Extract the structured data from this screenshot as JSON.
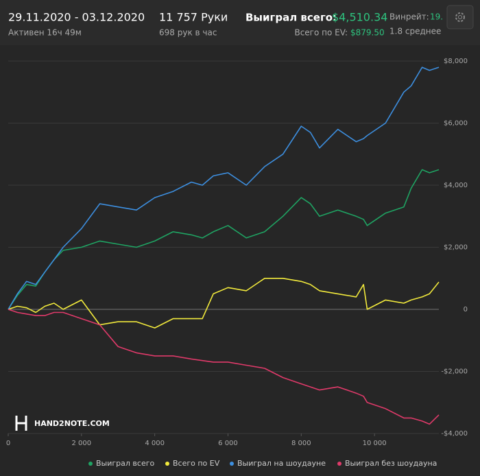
{
  "header": {
    "date_range": "29.11.2020 - 03.12.2020",
    "active": "Активен 16ч 49м",
    "hands": "11 757 Руки",
    "hands_per_hour": "698 рук в час",
    "won_label": "Выиграл всего:",
    "won_value": "$4,510.34",
    "ev_label": "Всего по EV:",
    "ev_value": "$879.50",
    "winrate_label": "Винрейт:",
    "winrate_value": "19.",
    "average": "1.8 среднее"
  },
  "watermark": "HAND2NOTE.COM",
  "chart_data": {
    "type": "line",
    "x": [
      0,
      250,
      500,
      750,
      1000,
      1250,
      1500,
      2000,
      2500,
      3000,
      3500,
      4000,
      4500,
      5000,
      5300,
      5600,
      6000,
      6500,
      7000,
      7500,
      8000,
      8250,
      8500,
      9000,
      9500,
      9700,
      9800,
      10300,
      10800,
      11000,
      11300,
      11500,
      11757
    ],
    "series": [
      {
        "name": "Выиграл всего",
        "color": "#1fa463",
        "values": [
          0,
          450,
          800,
          750,
          1200,
          1600,
          1900,
          2000,
          2200,
          2100,
          2000,
          2200,
          2500,
          2400,
          2300,
          2500,
          2700,
          2300,
          2500,
          3000,
          3600,
          3400,
          3000,
          3200,
          3000,
          2900,
          2700,
          3100,
          3300,
          3900,
          4500,
          4400,
          4500
        ]
      },
      {
        "name": "Всего по EV",
        "color": "#f2ea3c",
        "values": [
          0,
          100,
          50,
          -100,
          100,
          200,
          0,
          300,
          -500,
          -400,
          -400,
          -600,
          -300,
          -300,
          -300,
          500,
          700,
          600,
          1000,
          1000,
          900,
          800,
          600,
          500,
          400,
          800,
          0,
          300,
          200,
          300,
          400,
          500,
          880
        ]
      },
      {
        "name": "Выиграл на шоудауне",
        "color": "#3d8fe0",
        "values": [
          0,
          500,
          900,
          800,
          1200,
          1600,
          2000,
          2600,
          3400,
          3300,
          3200,
          3600,
          3800,
          4100,
          4000,
          4300,
          4400,
          4000,
          4600,
          5000,
          5900,
          5700,
          5200,
          5800,
          5400,
          5500,
          5600,
          6000,
          7000,
          7200,
          7800,
          7700,
          7800
        ]
      },
      {
        "name": "Выиграл без шоудауна",
        "color": "#e03a6a",
        "values": [
          0,
          -100,
          -150,
          -200,
          -200,
          -100,
          -100,
          -300,
          -500,
          -1200,
          -1400,
          -1500,
          -1500,
          -1600,
          -1650,
          -1700,
          -1700,
          -1800,
          -1900,
          -2200,
          -2400,
          -2500,
          -2600,
          -2500,
          -2700,
          -2800,
          -3000,
          -3200,
          -3500,
          -3500,
          -3600,
          -3700,
          -3400
        ]
      }
    ],
    "xlim": [
      0,
      11757
    ],
    "xticks": [
      0,
      {
        "value": 2000,
        "label": "2 000"
      },
      {
        "value": 4000,
        "label": "4 000"
      },
      {
        "value": 6000,
        "label": "6 000"
      },
      {
        "value": 8000,
        "label": "8 000"
      },
      {
        "value": 10000,
        "label": "10 000"
      }
    ],
    "ylim": [
      -4000,
      8000
    ],
    "yticks": [
      {
        "value": -4000,
        "label": "-$4,000"
      },
      {
        "value": -2000,
        "label": "-$2,000"
      },
      0,
      {
        "value": 2000,
        "label": "$2,000"
      },
      {
        "value": 4000,
        "label": "$4,000"
      },
      {
        "value": 6000,
        "label": "$6,000"
      },
      {
        "value": 8000,
        "label": "$8,000"
      }
    ],
    "grid": true
  }
}
